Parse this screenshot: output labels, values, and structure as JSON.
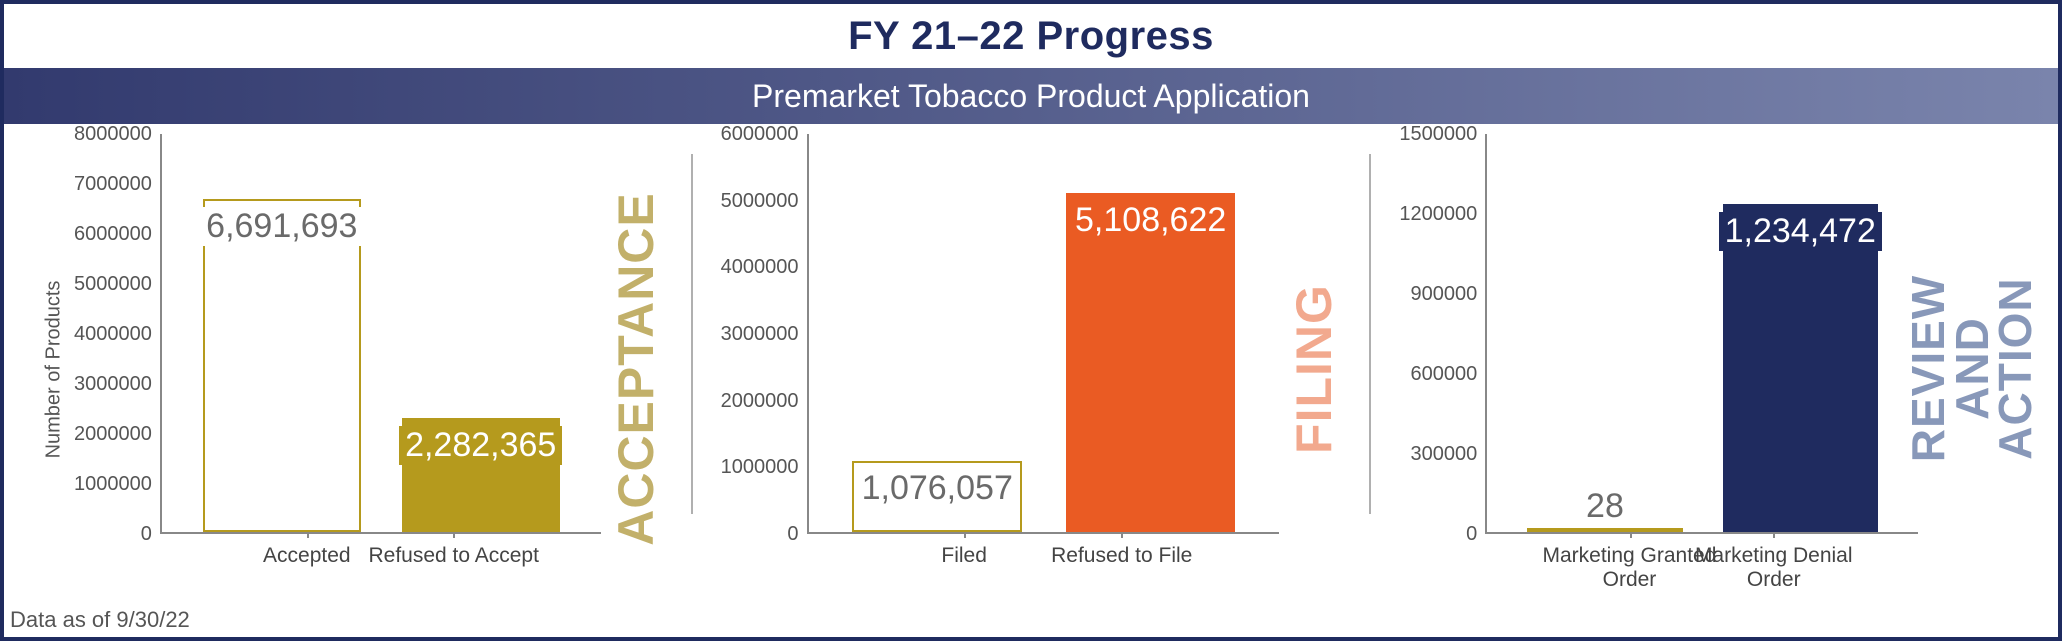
{
  "header": {
    "title": "FY 21–22 Progress",
    "title_color": "#1f2b5f",
    "subtitle": "Premarket Tobacco Product Application",
    "subtitle_bg_from": "#323a6e",
    "subtitle_bg_to": "#7a84ac"
  },
  "footer": "Data as of 9/30/22",
  "panels": [
    {
      "type": "bar",
      "side_label": "ACCEPTANCE",
      "side_label_color": "#c2b06a",
      "ylabel": "Number of Products",
      "ymax": 8000000,
      "ytick_step": 1000000,
      "bar_width_pct": 36,
      "bars": [
        {
          "label": "Accepted",
          "value": 6691693,
          "display": "6,691,693",
          "fill": "#ffffff",
          "border": "#b59a1d",
          "text_color": "#6a6a6a",
          "value_pos": "inside"
        },
        {
          "label": "Refused to Accept",
          "value": 2282365,
          "display": "2,282,365",
          "fill": "#b59a1d",
          "border": "#b59a1d",
          "text_color": "#ffffff",
          "value_pos": "inside"
        }
      ]
    },
    {
      "type": "bar",
      "side_label": "FILING",
      "side_label_color": "#f2a98e",
      "ylabel": "",
      "ymax": 6000000,
      "ytick_step": 1000000,
      "bar_width_pct": 36,
      "bars": [
        {
          "label": "Filed",
          "value": 1076057,
          "display": "1,076,057",
          "fill": "#ffffff",
          "border": "#b59a1d",
          "text_color": "#6a6a6a",
          "value_pos": "inside"
        },
        {
          "label": "Refused to File",
          "value": 5108622,
          "display": "5,108,622",
          "fill": "#ea5b23",
          "border": "#ea5b23",
          "text_color": "#ffffff",
          "value_pos": "inside"
        }
      ]
    },
    {
      "type": "bar",
      "side_label": "REVIEW AND ACTION",
      "side_label_color": "#8898b9",
      "side_label_twoline": true,
      "ylabel": "",
      "ymax": 1500000,
      "ytick_step": 300000,
      "bar_width_pct": 36,
      "bars": [
        {
          "label": "Marketing Granted Order",
          "value": 28,
          "display": "28",
          "fill": "#ffffff",
          "border": "#b59a1d",
          "text_color": "#6a6a6a",
          "value_pos": "above"
        },
        {
          "label": "Marketing Denial Order",
          "value": 1234472,
          "display": "1,234,472",
          "fill": "#1f2b5f",
          "border": "#1f2b5f",
          "text_color": "#ffffff",
          "value_pos": "inside"
        }
      ]
    }
  ]
}
